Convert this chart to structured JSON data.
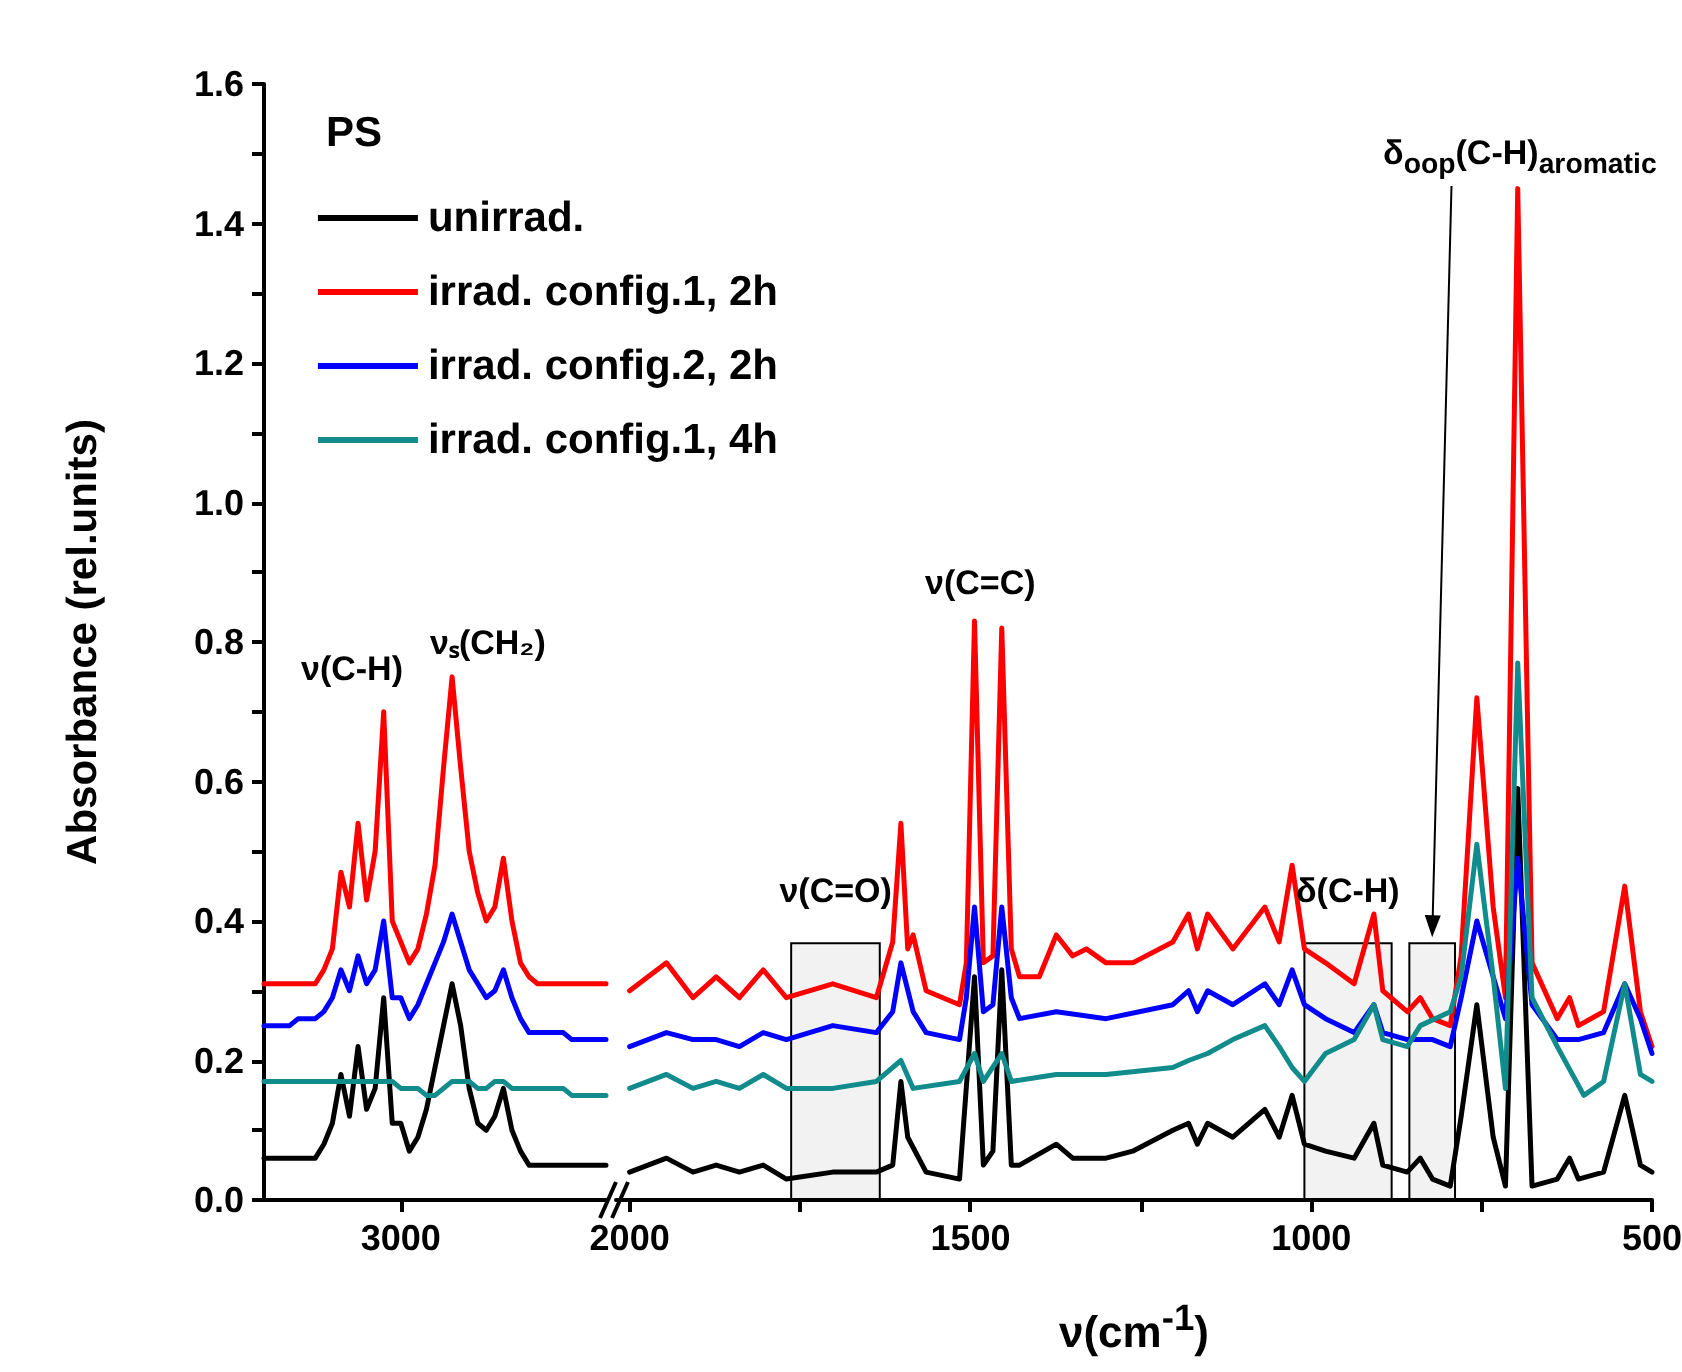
{
  "chart_data": [
    {
      "type": "line",
      "ylabel": "Absorbance (rel.units)",
      "legend_title": "PS",
      "legend": "top right",
      "categories": [
        null,
        null,
        null,
        null,
        null,
        null,
        null,
        null,
        null,
        null,
        null,
        null,
        null,
        null,
        null,
        null,
        "3000",
        null,
        null,
        null,
        null,
        null,
        null,
        null,
        null,
        null,
        null,
        null,
        null,
        null,
        null,
        null,
        null,
        null,
        null,
        null,
        null,
        null,
        null,
        null,
        null
      ],
      "ylim": [
        0,
        1.6
      ],
      "yticks": [
        {
          "value": 0,
          "label": "0.0"
        },
        {
          "value": 0.1,
          "label": null
        },
        {
          "value": 0.2,
          "label": "0.2"
        },
        {
          "value": 0.3,
          "label": null
        },
        {
          "value": 0.4,
          "label": "0.4"
        },
        {
          "value": 0.5,
          "label": null
        },
        {
          "value": 0.6,
          "label": "0.6"
        },
        {
          "value": 0.7,
          "label": null
        },
        {
          "value": 0.8,
          "label": "0.8"
        },
        {
          "value": 0.9,
          "label": null
        },
        {
          "value": 1.0,
          "label": "1.0"
        },
        {
          "value": 1.1,
          "label": null
        },
        {
          "value": 1.2,
          "label": "1.2"
        },
        {
          "value": 1.3,
          "label": null
        },
        {
          "value": 1.4,
          "label": "1.4"
        },
        {
          "value": 1.5,
          "label": null
        },
        {
          "value": 1.6,
          "label": "1.6"
        }
      ],
      "annotations": [
        "ν(C-H)",
        "νₛ(CH₂)"
      ],
      "series": [
        {
          "name": "unirrad.",
          "color": "#000000",
          "values": [
            0.06,
            0.06,
            0.06,
            0.06,
            0.06,
            0.06,
            0.06,
            0.08,
            0.11,
            0.18,
            0.12,
            0.22,
            0.13,
            0.16,
            0.29,
            0.11,
            0.11,
            0.07,
            0.09,
            0.13,
            0.19,
            0.25,
            0.31,
            0.25,
            0.16,
            0.11,
            0.1,
            0.12,
            0.16,
            0.1,
            0.07,
            0.05,
            0.05,
            0.05,
            0.05,
            0.05,
            0.05,
            0.05,
            0.05,
            0.05,
            0.05
          ]
        },
        {
          "name": "irrad. config.1, 2h",
          "color": "#ff0000",
          "values": [
            0.31,
            0.31,
            0.31,
            0.31,
            0.31,
            0.31,
            0.31,
            0.33,
            0.36,
            0.47,
            0.42,
            0.54,
            0.43,
            0.5,
            0.7,
            0.4,
            0.37,
            0.34,
            0.36,
            0.41,
            0.48,
            0.62,
            0.75,
            0.62,
            0.5,
            0.44,
            0.4,
            0.42,
            0.49,
            0.4,
            0.34,
            0.32,
            0.31,
            0.31,
            0.31,
            0.31,
            0.31,
            0.31,
            0.31,
            0.31,
            0.31
          ]
        },
        {
          "name": "irrad. config.2, 2h",
          "color": "#0000ff",
          "values": [
            0.25,
            0.25,
            0.25,
            0.25,
            0.26,
            0.26,
            0.26,
            0.27,
            0.29,
            0.33,
            0.3,
            0.35,
            0.31,
            0.33,
            0.4,
            0.29,
            0.29,
            0.26,
            0.28,
            0.31,
            0.34,
            0.37,
            0.41,
            0.37,
            0.33,
            0.31,
            0.29,
            0.3,
            0.33,
            0.29,
            0.26,
            0.24,
            0.24,
            0.24,
            0.24,
            0.24,
            0.23,
            0.23,
            0.23,
            0.23,
            0.23
          ]
        },
        {
          "name": "irrad. config.1, 4h",
          "color": "#118b8b",
          "values": [
            0.17,
            0.17,
            0.17,
            0.17,
            0.17,
            0.17,
            0.17,
            0.17,
            0.17,
            0.17,
            0.17,
            0.17,
            0.17,
            0.17,
            0.17,
            0.17,
            0.16,
            0.16,
            0.16,
            0.15,
            0.15,
            0.16,
            0.17,
            0.17,
            0.17,
            0.16,
            0.16,
            0.17,
            0.17,
            0.16,
            0.16,
            0.16,
            0.16,
            0.16,
            0.16,
            0.16,
            0.15,
            0.15,
            0.15,
            0.15,
            0.15
          ]
        }
      ]
    },
    {
      "type": "line",
      "xlabel": "ν(cm$^{-1}$)",
      "tick_labels": "x",
      "xlim": [
        2020,
        500
      ],
      "xticks": [
        2000,
        {
          "value": 1750,
          "label": null
        },
        1500,
        {
          "value": 1250,
          "label": null
        },
        1000,
        {
          "value": 750,
          "label": null
        },
        500
      ],
      "ylim": [
        0,
        1.6
      ],
      "annotations": [
        "ν(C=C)",
        "δ$_{oop}$(C-H)$_{aromatic}$"
      ],
      "bands": [
        {
          "axis": "x",
          "from": 1763,
          "to": 1633,
          "label": "ν(C=O)"
        },
        {
          "axis": "x",
          "from": 1010,
          "to": 882,
          "label": "δ(C-H)"
        },
        {
          "axis": "x",
          "from": 856,
          "to": 789
        }
      ],
      "series": [
        {
          "color": "#000000",
          "x": [
            2000,
            1946,
            1907,
            1873,
            1839,
            1804,
            1770,
            1702,
            1638,
            1614,
            1602,
            1592,
            1565,
            1516,
            1494,
            1481,
            1467,
            1454,
            1440,
            1428,
            1374,
            1350,
            1301,
            1262,
            1203,
            1180,
            1167,
            1152,
            1115,
            1068,
            1047,
            1028,
            1010,
            979,
            937,
            908,
            895,
            859,
            840,
            822,
            796,
            780,
            757,
            733,
            715,
            697,
            676,
            639,
            621,
            608,
            571,
            540,
            517,
            500
          ],
          "values": [
            0.04,
            0.06,
            0.04,
            0.05,
            0.04,
            0.05,
            0.03,
            0.04,
            0.04,
            0.05,
            0.17,
            0.09,
            0.04,
            0.03,
            0.32,
            0.05,
            0.07,
            0.33,
            0.05,
            0.05,
            0.08,
            0.06,
            0.06,
            0.07,
            0.1,
            0.11,
            0.08,
            0.11,
            0.09,
            0.13,
            0.09,
            0.15,
            0.08,
            0.07,
            0.06,
            0.11,
            0.05,
            0.04,
            0.06,
            0.03,
            0.02,
            0.12,
            0.28,
            0.09,
            0.02,
            0.59,
            0.02,
            0.03,
            0.06,
            0.03,
            0.04,
            0.15,
            0.05,
            0.04
          ]
        },
        {
          "color": "#ff0000",
          "x": [
            2000,
            1946,
            1907,
            1873,
            1839,
            1804,
            1770,
            1702,
            1638,
            1614,
            1602,
            1592,
            1584,
            1565,
            1516,
            1506,
            1494,
            1481,
            1467,
            1454,
            1440,
            1428,
            1399,
            1374,
            1350,
            1330,
            1301,
            1262,
            1203,
            1180,
            1167,
            1152,
            1115,
            1068,
            1047,
            1028,
            1010,
            979,
            937,
            908,
            895,
            859,
            840,
            822,
            796,
            780,
            757,
            733,
            715,
            697,
            676,
            639,
            621,
            608,
            571,
            540,
            517,
            500
          ],
          "values": [
            0.3,
            0.34,
            0.29,
            0.32,
            0.29,
            0.33,
            0.29,
            0.31,
            0.29,
            0.37,
            0.54,
            0.36,
            0.38,
            0.3,
            0.28,
            0.34,
            0.83,
            0.34,
            0.35,
            0.82,
            0.36,
            0.32,
            0.32,
            0.38,
            0.35,
            0.36,
            0.34,
            0.34,
            0.37,
            0.41,
            0.36,
            0.41,
            0.36,
            0.42,
            0.37,
            0.48,
            0.36,
            0.34,
            0.31,
            0.41,
            0.3,
            0.27,
            0.29,
            0.26,
            0.25,
            0.35,
            0.72,
            0.42,
            0.29,
            1.45,
            0.34,
            0.26,
            0.29,
            0.25,
            0.27,
            0.45,
            0.27,
            0.22
          ]
        },
        {
          "color": "#0000ff",
          "x": [
            2000,
            1946,
            1907,
            1873,
            1839,
            1804,
            1770,
            1702,
            1638,
            1614,
            1602,
            1584,
            1565,
            1516,
            1506,
            1494,
            1481,
            1467,
            1454,
            1440,
            1428,
            1374,
            1301,
            1203,
            1180,
            1167,
            1152,
            1115,
            1068,
            1047,
            1028,
            1010,
            979,
            937,
            908,
            895,
            859,
            822,
            796,
            780,
            757,
            733,
            715,
            697,
            676,
            639,
            608,
            571,
            540,
            517,
            500
          ],
          "values": [
            0.22,
            0.24,
            0.23,
            0.23,
            0.22,
            0.24,
            0.23,
            0.25,
            0.24,
            0.27,
            0.34,
            0.27,
            0.24,
            0.23,
            0.29,
            0.42,
            0.27,
            0.28,
            0.42,
            0.29,
            0.26,
            0.27,
            0.26,
            0.28,
            0.3,
            0.27,
            0.3,
            0.28,
            0.31,
            0.28,
            0.33,
            0.28,
            0.26,
            0.24,
            0.28,
            0.24,
            0.23,
            0.23,
            0.22,
            0.29,
            0.4,
            0.32,
            0.26,
            0.49,
            0.28,
            0.23,
            0.23,
            0.24,
            0.31,
            0.26,
            0.21
          ]
        },
        {
          "color": "#118b8b",
          "x": [
            2000,
            1946,
            1907,
            1873,
            1839,
            1804,
            1770,
            1702,
            1638,
            1602,
            1584,
            1516,
            1494,
            1481,
            1454,
            1440,
            1374,
            1301,
            1203,
            1180,
            1152,
            1115,
            1068,
            1047,
            1028,
            1010,
            979,
            937,
            908,
            895,
            859,
            840,
            796,
            780,
            757,
            733,
            715,
            697,
            676,
            639,
            600,
            571,
            540,
            517,
            500
          ],
          "values": [
            0.16,
            0.18,
            0.16,
            0.17,
            0.16,
            0.18,
            0.16,
            0.16,
            0.17,
            0.2,
            0.16,
            0.17,
            0.21,
            0.17,
            0.21,
            0.17,
            0.18,
            0.18,
            0.19,
            0.2,
            0.21,
            0.23,
            0.25,
            0.22,
            0.19,
            0.17,
            0.21,
            0.23,
            0.28,
            0.23,
            0.22,
            0.25,
            0.27,
            0.32,
            0.51,
            0.32,
            0.16,
            0.77,
            0.29,
            0.22,
            0.15,
            0.17,
            0.31,
            0.18,
            0.17
          ]
        }
      ]
    }
  ]
}
